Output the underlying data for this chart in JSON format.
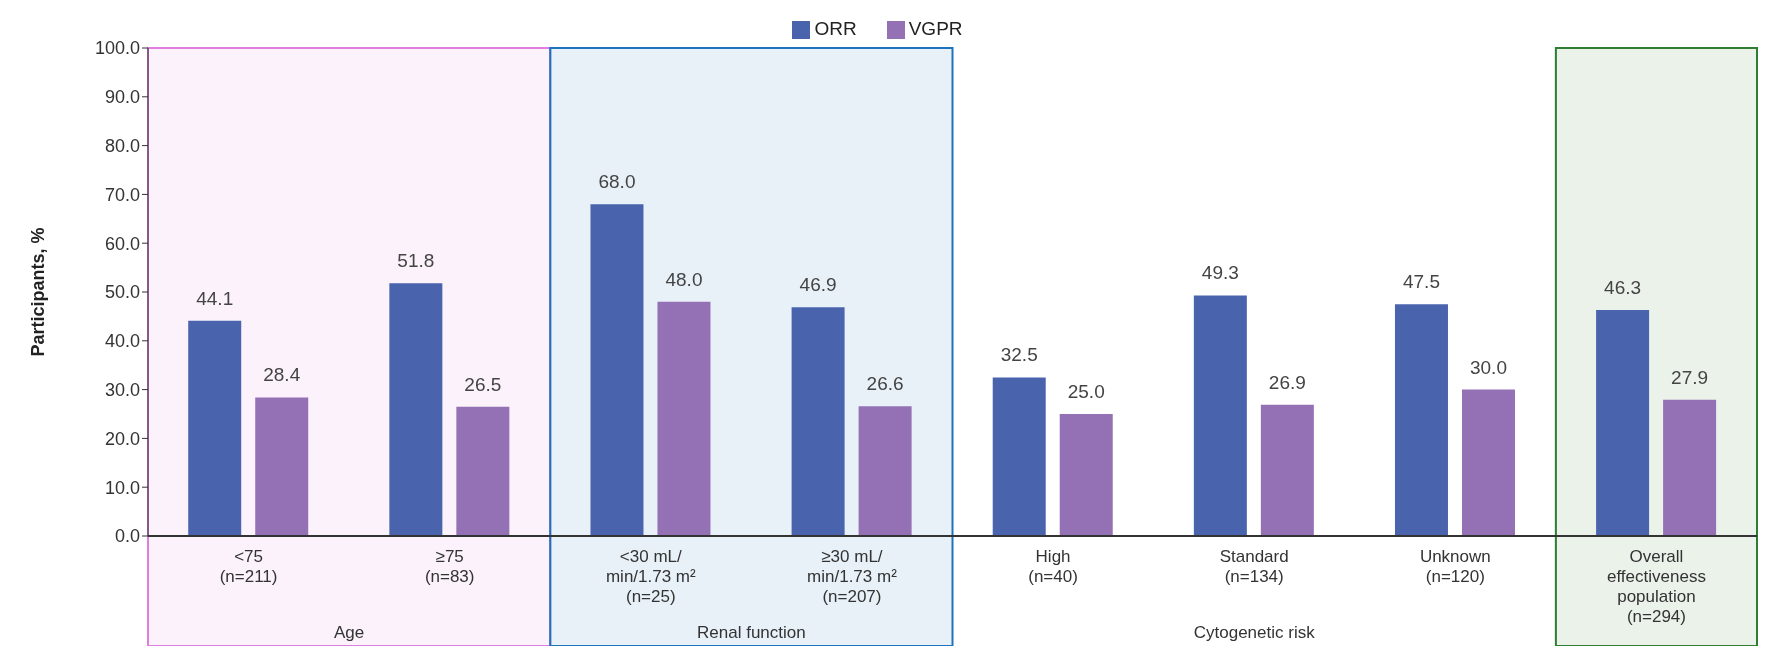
{
  "chart_data": {
    "type": "bar",
    "ylabel": "Participants, %",
    "categories": [
      "<75\n(n=211)",
      "≥75\n(n=83)",
      "<30 mL/\nmin/1.73 m²\n(n=25)",
      "≥30 mL/\nmin/1.73 m²\n(n=207)",
      "High\n(n=40)",
      "Standard\n(n=134)",
      "Unknown\n(n=120)",
      "Overall\neffectiveness\npopulation\n(n=294)"
    ],
    "series": [
      {
        "name": "ORR",
        "color": "#4a63ad",
        "values": [
          44.1,
          51.8,
          68.0,
          46.9,
          32.5,
          49.3,
          47.5,
          46.3
        ],
        "value_labels": [
          "44.1",
          "51.8",
          "68.0",
          "46.9",
          "32.5",
          "49.3",
          "47.5",
          "46.3"
        ]
      },
      {
        "name": "VGPR",
        "color": "#9470b5",
        "values": [
          28.4,
          26.5,
          48.0,
          26.6,
          25.0,
          26.9,
          30.0,
          27.9
        ],
        "value_labels": [
          "28.4",
          "26.5",
          "48.0",
          "26.6",
          "25.0",
          "26.9",
          "30.0",
          "27.9"
        ]
      }
    ],
    "ylim": [
      0,
      100
    ],
    "yticks": [
      {
        "value": 0,
        "label": "0.0"
      },
      {
        "value": 10,
        "label": "10.0"
      },
      {
        "value": 20,
        "label": "20.0"
      },
      {
        "value": 30,
        "label": "30.0"
      },
      {
        "value": 40,
        "label": "40.0"
      },
      {
        "value": 50,
        "label": "50.0"
      },
      {
        "value": 60,
        "label": "60.0"
      },
      {
        "value": 70,
        "label": "70.0"
      },
      {
        "value": 80,
        "label": "80.0"
      },
      {
        "value": 90,
        "label": "90.0"
      },
      {
        "value": 100,
        "label": "100.0"
      }
    ],
    "bands": [
      {
        "axis": "x",
        "from": "<75\n(n=211)",
        "to": "≥75\n(n=83)",
        "label": "Age",
        "color": "#e07ee0"
      },
      {
        "axis": "x",
        "from": "<30 mL/\nmin/1.73 m²\n(n=25)",
        "to": "≥30 mL/\nmin/1.73 m²\n(n=207)",
        "label": "Renal function",
        "color": "#1f72bd"
      },
      {
        "axis": "x",
        "from": "Overall\neffectiveness\npopulation\n(n=294)",
        "to": "Overall\neffectiveness\npopulation\n(n=294)",
        "color": "#2e7d32"
      }
    ],
    "annotations": [
      "Cytogenetic risk"
    ],
    "legend": "top",
    "grid": false
  }
}
